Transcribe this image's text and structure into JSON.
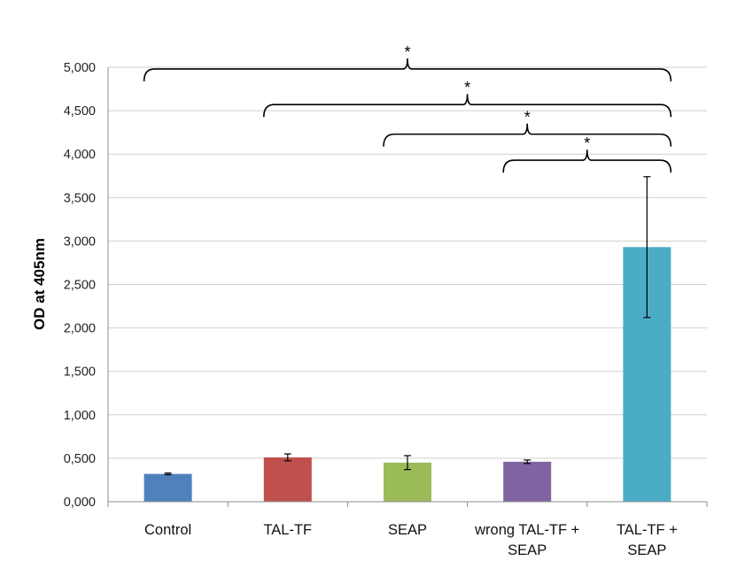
{
  "chart_data": {
    "type": "bar",
    "ylabel": "OD at 405nm",
    "xlabel": "",
    "ylim": [
      0,
      5.0
    ],
    "yticks": [
      0,
      0.5,
      1.0,
      1.5,
      2.0,
      2.5,
      3.0,
      3.5,
      4.0,
      4.5,
      5.0
    ],
    "ytick_labels": [
      "0,000",
      "0,500",
      "1,000",
      "1,500",
      "2,000",
      "2,500",
      "3,000",
      "3,500",
      "4,000",
      "4,500",
      "5,000"
    ],
    "grid": true,
    "categories": [
      {
        "lines": [
          "Control"
        ]
      },
      {
        "lines": [
          "TAL-TF"
        ]
      },
      {
        "lines": [
          "SEAP"
        ]
      },
      {
        "lines": [
          "wrong TAL-TF +",
          "SEAP"
        ]
      },
      {
        "lines": [
          "TAL-TF +",
          "SEAP"
        ]
      }
    ],
    "values": [
      0.32,
      0.51,
      0.45,
      0.46,
      2.93
    ],
    "errors": [
      0.01,
      0.04,
      0.08,
      0.02,
      0.81
    ],
    "colors": [
      "#4f81bd",
      "#c0504d",
      "#9bbb59",
      "#8064a2",
      "#4bacc6"
    ],
    "significance": [
      {
        "from": 0,
        "to": 4,
        "y": 4.98,
        "label": "*"
      },
      {
        "from": 1,
        "to": 4,
        "y": 4.57,
        "label": "*"
      },
      {
        "from": 2,
        "to": 4,
        "y": 4.23,
        "label": "*"
      },
      {
        "from": 3,
        "to": 4,
        "y": 3.93,
        "label": "*"
      }
    ]
  }
}
